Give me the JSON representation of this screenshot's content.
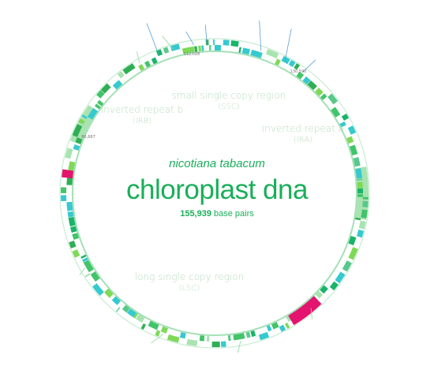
{
  "title": {
    "organism": "nicotiana tabacum",
    "molecule": "chloroplast dna",
    "length_value": "155,939",
    "length_unit": " base pairs"
  },
  "regions": [
    {
      "name": "small single copy region",
      "abbr": "(SSC)"
    },
    {
      "name": "inverted repeat b",
      "abbr": "(IRB)"
    },
    {
      "name": "inverted repeat a",
      "abbr": "(IRA)"
    },
    {
      "name": "long single copy region",
      "abbr": "(LSC)"
    }
  ],
  "position_labels": [
    "112,028",
    "130,590",
    "86,687"
  ],
  "colors": {
    "ring": "#8fd9a4",
    "title_green": "#1aae5a",
    "region_label": "#b8dcc0",
    "accent_magenta": "#e3136f",
    "gene_greens": [
      "#41c46a",
      "#2fae55",
      "#7ed957",
      "#a8e3b0",
      "#19b469",
      "#58c98a"
    ],
    "gene_cyan": "#36c9cf",
    "tick_line": "#5a9fd6"
  }
}
